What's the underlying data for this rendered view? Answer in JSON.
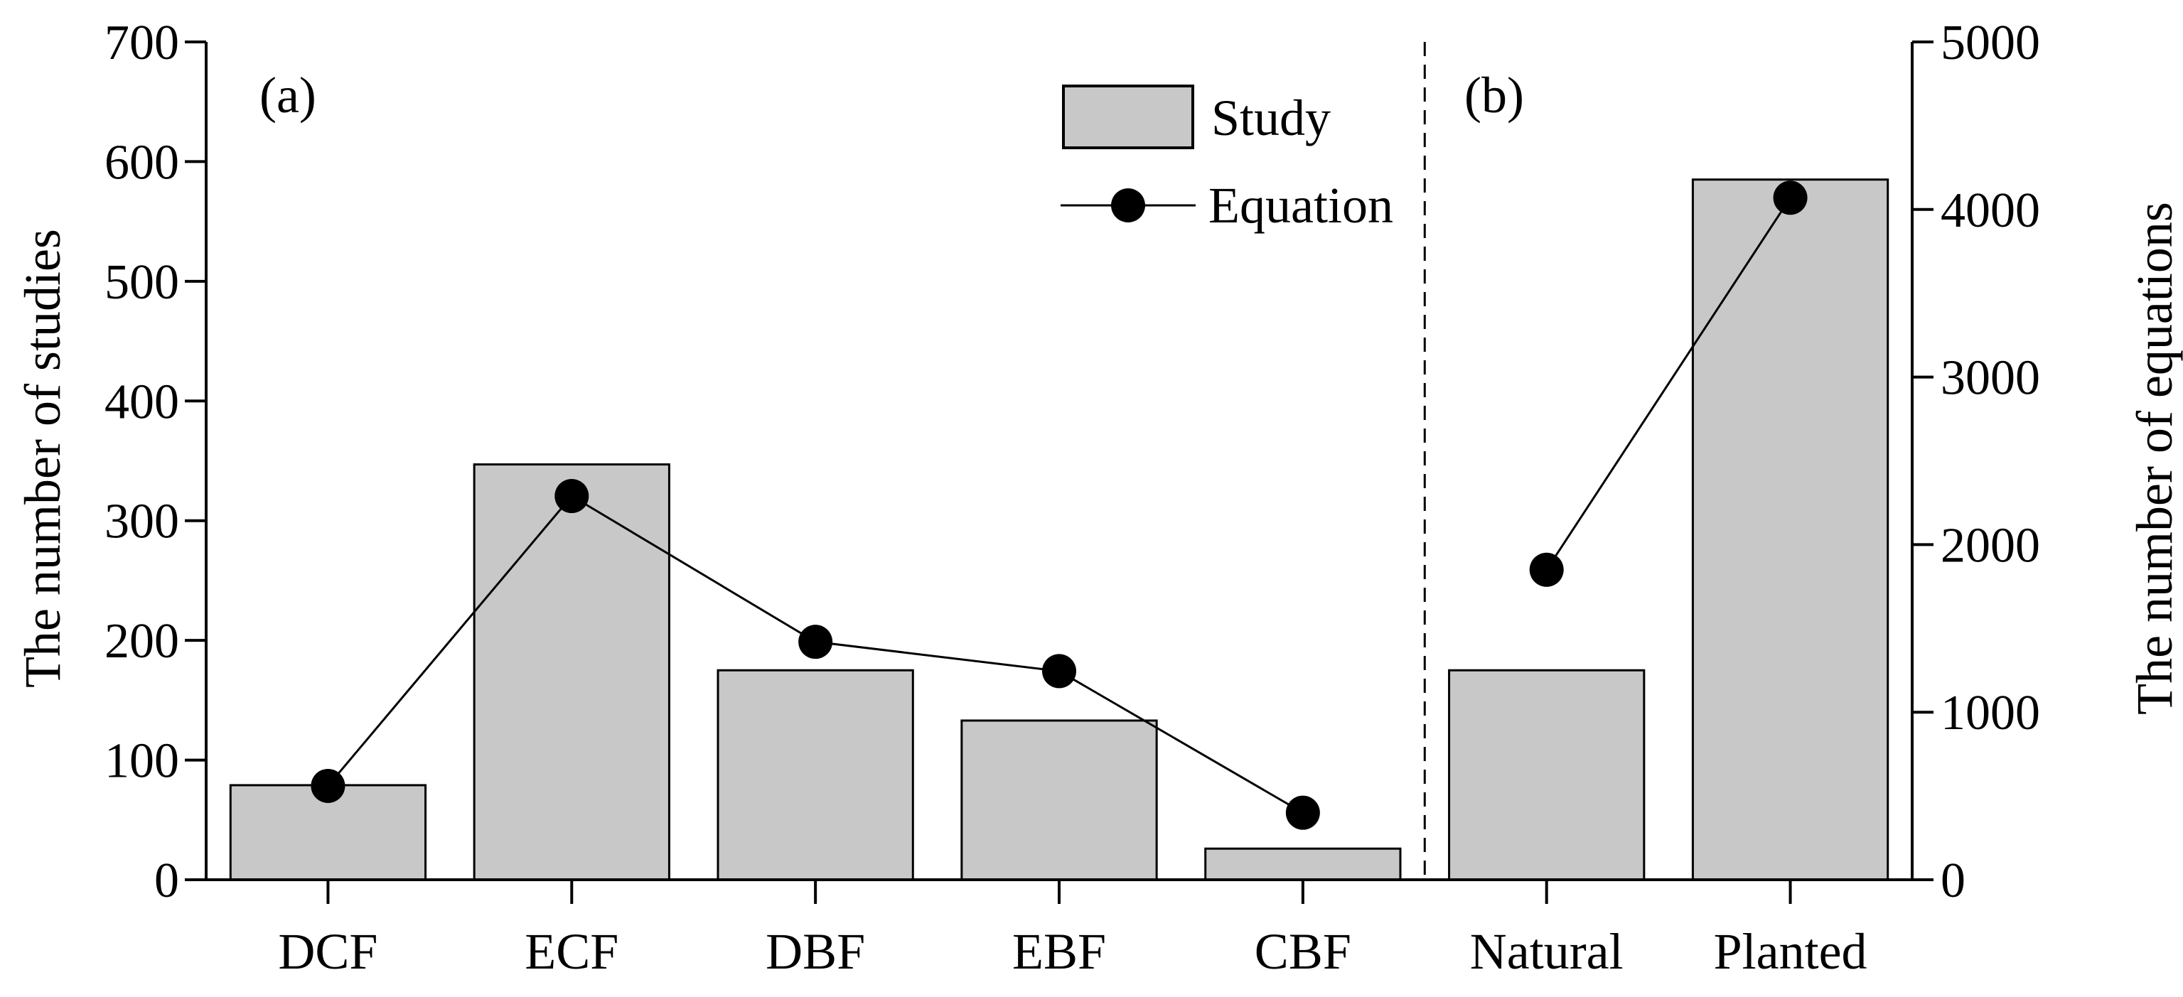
{
  "chart_data": {
    "type": "bar",
    "categories": [
      "DCF",
      "ECF",
      "DBF",
      "EBF",
      "CBF",
      "Natural",
      "Planted"
    ],
    "series": [
      {
        "name": "Study",
        "kind": "bar",
        "axis": "left",
        "values": [
          79,
          347,
          175,
          133,
          26,
          175,
          585
        ]
      },
      {
        "name": "Equation",
        "kind": "line",
        "axis": "right",
        "values": [
          560,
          2290,
          1420,
          1245,
          400,
          1850,
          4070
        ]
      }
    ],
    "line_segments": [
      [
        0,
        4
      ],
      [
        5,
        6
      ]
    ],
    "ylabel": "The number of studies",
    "ylabel_right": "The number of equations",
    "ylim": [
      0,
      700
    ],
    "ylim_right": [
      0,
      5000
    ],
    "yticks": [
      "0",
      "100",
      "200",
      "300",
      "400",
      "500",
      "600",
      "700"
    ],
    "yticks_right": [
      "0",
      "1000",
      "2000",
      "3000",
      "4000",
      "5000"
    ],
    "panel_labels": [
      "(a)",
      "(b)"
    ],
    "panel_split_after_category": 4,
    "legend_position": "top-center",
    "grid": false,
    "colors": {
      "bar_fill": "#c8c8c8",
      "bar_stroke": "#000000",
      "line": "#000000",
      "marker": "#000000"
    }
  }
}
